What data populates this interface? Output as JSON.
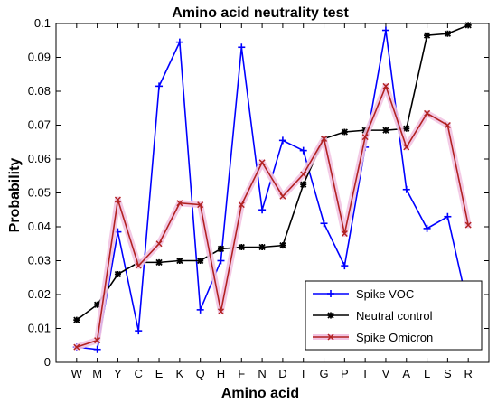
{
  "chart_data": {
    "type": "line",
    "title": "Amino acid neutrality test",
    "xlabel": "Amino acid",
    "ylabel": "Probability",
    "categories": [
      "W",
      "M",
      "Y",
      "C",
      "E",
      "K",
      "Q",
      "H",
      "F",
      "N",
      "D",
      "I",
      "G",
      "P",
      "T",
      "V",
      "A",
      "L",
      "S",
      "R"
    ],
    "ylim": [
      0,
      0.1
    ],
    "yticks": [
      0,
      0.01,
      0.02,
      0.03,
      0.04,
      0.05,
      0.06,
      0.07,
      0.08,
      0.09,
      0.1
    ],
    "ytick_labels": [
      "0",
      "0.01",
      "0.02",
      "0.03",
      "0.04",
      "0.05",
      "0.06",
      "0.07",
      "0.08",
      "0.09",
      "0.1"
    ],
    "grid": false,
    "legend_position": "bottom-right",
    "series": [
      {
        "name": "Spike VOC",
        "color": "#0000ff",
        "marker": "plus",
        "values": [
          0.0045,
          0.0038,
          0.0385,
          0.0093,
          0.0815,
          0.0945,
          0.0155,
          0.03,
          0.093,
          0.045,
          0.0655,
          0.0625,
          0.041,
          0.0285,
          0.0635,
          0.098,
          0.051,
          0.0395,
          0.043,
          0.016
        ]
      },
      {
        "name": "Neutral control",
        "color": "#000000",
        "marker": "star",
        "values": [
          0.0125,
          0.017,
          0.026,
          0.0295,
          0.0295,
          0.03,
          0.03,
          0.0335,
          0.034,
          0.034,
          0.0345,
          0.0525,
          0.066,
          0.068,
          0.0685,
          0.0685,
          0.069,
          0.0965,
          0.097,
          0.0995
        ]
      },
      {
        "name": "Spike Omicron",
        "color": "#b22222",
        "halo": "#f2c4e2",
        "marker": "x",
        "values": [
          0.0045,
          0.0065,
          0.048,
          0.0285,
          0.035,
          0.047,
          0.0465,
          0.015,
          0.0465,
          0.059,
          0.049,
          0.0555,
          0.066,
          0.038,
          0.0665,
          0.0815,
          0.0635,
          0.0735,
          0.07,
          0.0405
        ]
      }
    ]
  }
}
